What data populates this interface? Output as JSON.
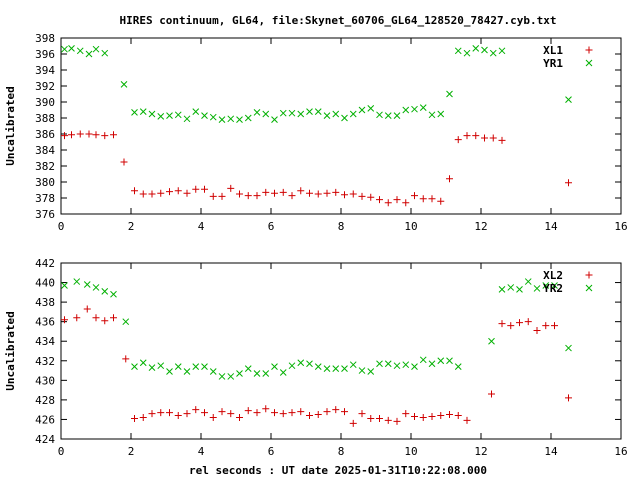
{
  "title": "HIRES continuum, GL64, file:Skynet_60706_GL64_128520_78427.cyb.txt",
  "xlabel": "rel seconds : UT date 2025-01-31T10:22:08.000",
  "colors": {
    "series1": "#d00000",
    "series2": "#00b000"
  },
  "chart_data": [
    {
      "type": "scatter",
      "title": "",
      "xlabel": "",
      "ylabel": "Uncalibrated",
      "xlim": [
        0,
        16
      ],
      "ylim": [
        376,
        398
      ],
      "x_ticks": [
        0,
        2,
        4,
        6,
        8,
        10,
        12,
        14,
        16
      ],
      "y_ticks": [
        376,
        378,
        380,
        382,
        384,
        386,
        388,
        390,
        392,
        394,
        396,
        398
      ],
      "x_tick_labels": [
        "0",
        "2",
        "4",
        "6",
        "8",
        "10",
        "12",
        "14",
        "16"
      ],
      "y_tick_labels": [
        "376",
        "378",
        "380",
        "382",
        "384",
        "386",
        "388",
        "390",
        "392",
        "394",
        "396",
        "398"
      ],
      "legend_position": "top-right",
      "series": [
        {
          "name": "XL1",
          "marker": "plus",
          "points": [
            [
              0.1,
              385.8
            ],
            [
              0.3,
              385.9
            ],
            [
              0.55,
              386.0
            ],
            [
              0.8,
              386.0
            ],
            [
              1.0,
              385.9
            ],
            [
              1.25,
              385.8
            ],
            [
              1.5,
              385.9
            ],
            [
              1.8,
              382.5
            ],
            [
              2.1,
              378.9
            ],
            [
              2.35,
              378.5
            ],
            [
              2.6,
              378.5
            ],
            [
              2.85,
              378.6
            ],
            [
              3.1,
              378.8
            ],
            [
              3.35,
              378.9
            ],
            [
              3.6,
              378.6
            ],
            [
              3.85,
              379.1
            ],
            [
              4.1,
              379.1
            ],
            [
              4.35,
              378.2
            ],
            [
              4.6,
              378.2
            ],
            [
              4.85,
              379.2
            ],
            [
              5.1,
              378.5
            ],
            [
              5.35,
              378.3
            ],
            [
              5.6,
              378.3
            ],
            [
              5.85,
              378.7
            ],
            [
              6.1,
              378.6
            ],
            [
              6.35,
              378.7
            ],
            [
              6.6,
              378.3
            ],
            [
              6.85,
              378.9
            ],
            [
              7.1,
              378.6
            ],
            [
              7.35,
              378.5
            ],
            [
              7.6,
              378.6
            ],
            [
              7.85,
              378.7
            ],
            [
              8.1,
              378.4
            ],
            [
              8.35,
              378.5
            ],
            [
              8.6,
              378.2
            ],
            [
              8.85,
              378.1
            ],
            [
              9.1,
              377.8
            ],
            [
              9.35,
              377.4
            ],
            [
              9.6,
              377.8
            ],
            [
              9.85,
              377.4
            ],
            [
              10.1,
              378.3
            ],
            [
              10.35,
              377.9
            ],
            [
              10.6,
              377.9
            ],
            [
              10.85,
              377.6
            ],
            [
              11.1,
              380.4
            ],
            [
              11.35,
              385.3
            ],
            [
              11.6,
              385.8
            ],
            [
              11.85,
              385.8
            ],
            [
              12.1,
              385.5
            ],
            [
              12.35,
              385.5
            ],
            [
              12.6,
              385.2
            ],
            [
              14.5,
              379.9
            ]
          ]
        },
        {
          "name": "YR1",
          "marker": "cross",
          "points": [
            [
              0.1,
              396.6
            ],
            [
              0.3,
              396.7
            ],
            [
              0.55,
              396.4
            ],
            [
              0.8,
              396.0
            ],
            [
              1.0,
              396.6
            ],
            [
              1.25,
              396.1
            ],
            [
              1.8,
              392.2
            ],
            [
              2.1,
              388.7
            ],
            [
              2.35,
              388.8
            ],
            [
              2.6,
              388.5
            ],
            [
              2.85,
              388.2
            ],
            [
              3.1,
              388.3
            ],
            [
              3.35,
              388.4
            ],
            [
              3.6,
              387.9
            ],
            [
              3.85,
              388.8
            ],
            [
              4.1,
              388.3
            ],
            [
              4.35,
              388.1
            ],
            [
              4.6,
              387.8
            ],
            [
              4.85,
              387.9
            ],
            [
              5.1,
              387.8
            ],
            [
              5.35,
              388.0
            ],
            [
              5.6,
              388.7
            ],
            [
              5.85,
              388.5
            ],
            [
              6.1,
              387.8
            ],
            [
              6.35,
              388.6
            ],
            [
              6.6,
              388.6
            ],
            [
              6.85,
              388.5
            ],
            [
              7.1,
              388.8
            ],
            [
              7.35,
              388.8
            ],
            [
              7.6,
              388.3
            ],
            [
              7.85,
              388.5
            ],
            [
              8.1,
              388.0
            ],
            [
              8.35,
              388.5
            ],
            [
              8.6,
              389.0
            ],
            [
              8.85,
              389.2
            ],
            [
              9.1,
              388.4
            ],
            [
              9.35,
              388.3
            ],
            [
              9.6,
              388.3
            ],
            [
              9.85,
              389.0
            ],
            [
              10.1,
              389.1
            ],
            [
              10.35,
              389.3
            ],
            [
              10.6,
              388.4
            ],
            [
              10.85,
              388.5
            ],
            [
              11.1,
              391.0
            ],
            [
              11.35,
              396.4
            ],
            [
              11.6,
              396.1
            ],
            [
              11.85,
              396.7
            ],
            [
              12.1,
              396.5
            ],
            [
              12.35,
              396.1
            ],
            [
              12.6,
              396.4
            ],
            [
              14.5,
              390.3
            ]
          ]
        }
      ]
    },
    {
      "type": "scatter",
      "title": "",
      "xlabel": "",
      "ylabel": "Uncalibrated",
      "xlim": [
        0,
        16
      ],
      "ylim": [
        424,
        442
      ],
      "x_ticks": [
        0,
        2,
        4,
        6,
        8,
        10,
        12,
        14,
        16
      ],
      "y_ticks": [
        424,
        426,
        428,
        430,
        432,
        434,
        436,
        438,
        440,
        442
      ],
      "x_tick_labels": [
        "0",
        "2",
        "4",
        "6",
        "8",
        "10",
        "12",
        "14",
        "16"
      ],
      "y_tick_labels": [
        "424",
        "426",
        "428",
        "430",
        "432",
        "434",
        "436",
        "438",
        "440",
        "442"
      ],
      "legend_position": "top-right",
      "series": [
        {
          "name": "XL2",
          "marker": "plus",
          "points": [
            [
              0.1,
              436.2
            ],
            [
              0.45,
              436.4
            ],
            [
              0.75,
              437.3
            ],
            [
              1.0,
              436.4
            ],
            [
              1.25,
              436.1
            ],
            [
              1.5,
              436.4
            ],
            [
              1.85,
              432.2
            ],
            [
              2.1,
              426.1
            ],
            [
              2.35,
              426.2
            ],
            [
              2.6,
              426.6
            ],
            [
              2.85,
              426.7
            ],
            [
              3.1,
              426.7
            ],
            [
              3.35,
              426.4
            ],
            [
              3.6,
              426.6
            ],
            [
              3.85,
              427.0
            ],
            [
              4.1,
              426.7
            ],
            [
              4.35,
              426.2
            ],
            [
              4.6,
              426.8
            ],
            [
              4.85,
              426.6
            ],
            [
              5.1,
              426.2
            ],
            [
              5.35,
              426.9
            ],
            [
              5.6,
              426.7
            ],
            [
              5.85,
              427.1
            ],
            [
              6.1,
              426.7
            ],
            [
              6.35,
              426.6
            ],
            [
              6.6,
              426.7
            ],
            [
              6.85,
              426.8
            ],
            [
              7.1,
              426.4
            ],
            [
              7.35,
              426.5
            ],
            [
              7.6,
              426.8
            ],
            [
              7.85,
              427.0
            ],
            [
              8.1,
              426.8
            ],
            [
              8.35,
              425.6
            ],
            [
              8.6,
              426.6
            ],
            [
              8.85,
              426.1
            ],
            [
              9.1,
              426.1
            ],
            [
              9.35,
              425.9
            ],
            [
              9.6,
              425.8
            ],
            [
              9.85,
              426.6
            ],
            [
              10.1,
              426.3
            ],
            [
              10.35,
              426.2
            ],
            [
              10.6,
              426.3
            ],
            [
              10.85,
              426.4
            ],
            [
              11.1,
              426.5
            ],
            [
              11.35,
              426.4
            ],
            [
              11.6,
              425.9
            ],
            [
              12.3,
              428.6
            ],
            [
              12.6,
              435.8
            ],
            [
              12.85,
              435.6
            ],
            [
              13.1,
              435.9
            ],
            [
              13.35,
              436.0
            ],
            [
              13.6,
              435.1
            ],
            [
              13.85,
              435.6
            ],
            [
              14.1,
              435.6
            ],
            [
              14.5,
              428.2
            ]
          ]
        },
        {
          "name": "YR2",
          "marker": "cross",
          "points": [
            [
              0.1,
              439.7
            ],
            [
              0.45,
              440.1
            ],
            [
              0.75,
              439.8
            ],
            [
              1.0,
              439.5
            ],
            [
              1.25,
              439.1
            ],
            [
              1.5,
              438.8
            ],
            [
              1.85,
              436.0
            ],
            [
              2.1,
              431.4
            ],
            [
              2.35,
              431.8
            ],
            [
              2.6,
              431.3
            ],
            [
              2.85,
              431.5
            ],
            [
              3.1,
              430.9
            ],
            [
              3.35,
              431.4
            ],
            [
              3.6,
              430.9
            ],
            [
              3.85,
              431.4
            ],
            [
              4.1,
              431.4
            ],
            [
              4.35,
              430.9
            ],
            [
              4.6,
              430.4
            ],
            [
              4.85,
              430.4
            ],
            [
              5.1,
              430.7
            ],
            [
              5.35,
              431.2
            ],
            [
              5.6,
              430.7
            ],
            [
              5.85,
              430.7
            ],
            [
              6.1,
              431.4
            ],
            [
              6.35,
              430.8
            ],
            [
              6.6,
              431.5
            ],
            [
              6.85,
              431.8
            ],
            [
              7.1,
              431.7
            ],
            [
              7.35,
              431.4
            ],
            [
              7.6,
              431.2
            ],
            [
              7.85,
              431.2
            ],
            [
              8.1,
              431.2
            ],
            [
              8.35,
              431.6
            ],
            [
              8.6,
              431.0
            ],
            [
              8.85,
              430.9
            ],
            [
              9.1,
              431.7
            ],
            [
              9.35,
              431.7
            ],
            [
              9.6,
              431.5
            ],
            [
              9.85,
              431.6
            ],
            [
              10.1,
              431.4
            ],
            [
              10.35,
              432.1
            ],
            [
              10.6,
              431.7
            ],
            [
              10.85,
              432.0
            ],
            [
              11.1,
              432.0
            ],
            [
              11.35,
              431.4
            ],
            [
              12.3,
              434.0
            ],
            [
              12.6,
              439.3
            ],
            [
              12.85,
              439.5
            ],
            [
              13.1,
              439.3
            ],
            [
              13.35,
              440.1
            ],
            [
              13.6,
              439.4
            ],
            [
              13.85,
              439.7
            ],
            [
              14.1,
              439.7
            ],
            [
              14.5,
              433.3
            ]
          ]
        }
      ]
    }
  ]
}
